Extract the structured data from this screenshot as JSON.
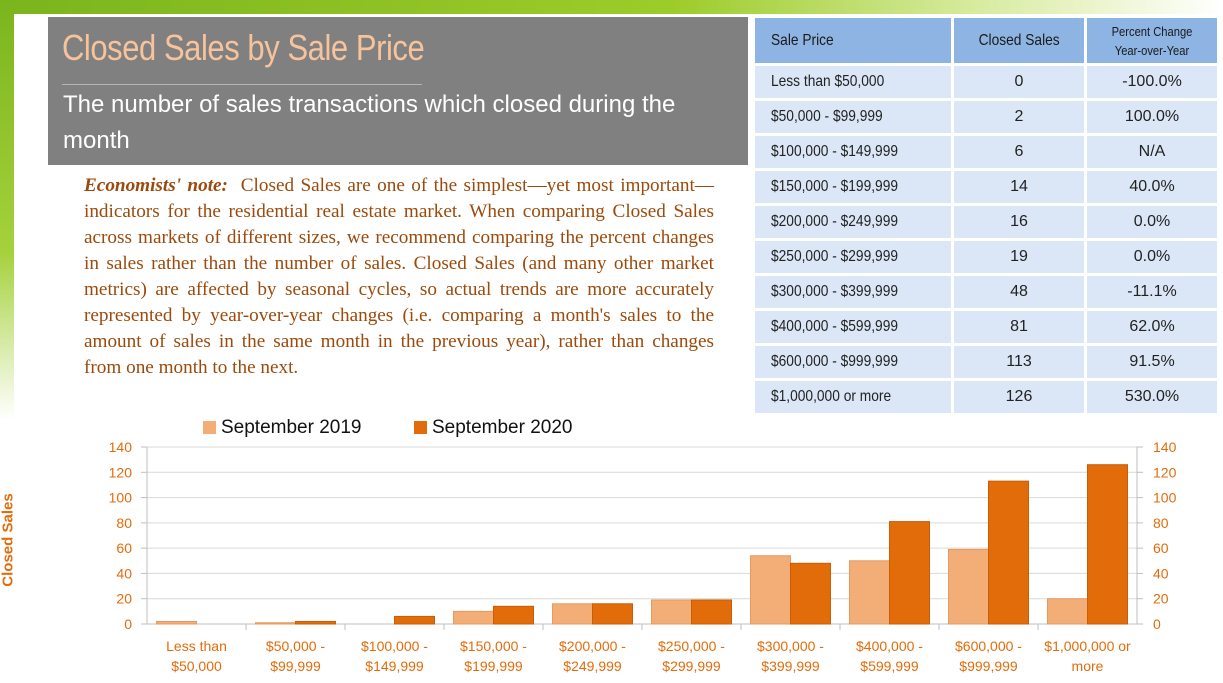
{
  "title": "Closed Sales by Sale Price",
  "subtitle": "The number of sales transactions which closed during the month",
  "note": {
    "label": "Economists' note:",
    "text": "Closed Sales are one of the simplest—yet most important—indicators for the residential real estate market. When comparing Closed Sales across markets of different sizes, we recommend comparing the percent changes in sales rather than the number of sales. Closed Sales (and many other market metrics) are affected by seasonal cycles, so actual trends are more accurately represented by year-over-year changes (i.e. comparing a month's sales to the amount of sales in the same month in the previous year), rather than changes from one month to the next."
  },
  "table": {
    "headers": [
      "Sale Price",
      "Closed Sales",
      "Percent Change",
      "Year-over-Year"
    ],
    "rows": [
      [
        "Less than $50,000",
        "0",
        "-100.0%"
      ],
      [
        "$50,000 - $99,999",
        "2",
        "100.0%"
      ],
      [
        "$100,000 - $149,999",
        "6",
        "N/A"
      ],
      [
        "$150,000 - $199,999",
        "14",
        "40.0%"
      ],
      [
        "$200,000 - $249,999",
        "16",
        "0.0%"
      ],
      [
        "$250,000 - $299,999",
        "19",
        "0.0%"
      ],
      [
        "$300,000 - $399,999",
        "48",
        "-11.1%"
      ],
      [
        "$400,000 - $599,999",
        "81",
        "62.0%"
      ],
      [
        "$600,000 - $999,999",
        "113",
        "91.5%"
      ],
      [
        "$1,000,000 or more",
        "126",
        "530.0%"
      ]
    ]
  },
  "colors": {
    "series_2019": "#f2ae76",
    "series_2020": "#e36c0a",
    "accent": "#e36c0a",
    "header_bg": "#8eb4e3",
    "cell_bg": "#dbe7f6"
  },
  "chart_data": {
    "type": "bar",
    "ylabel": "Closed Sales",
    "ylim": [
      0,
      140
    ],
    "yticks": [
      0,
      20,
      40,
      60,
      80,
      100,
      120,
      140
    ],
    "dual_y_axis": true,
    "grid": true,
    "legend_position": "top-left",
    "categories": [
      [
        "Less than",
        "$50,000"
      ],
      [
        "$50,000 -",
        "$99,999"
      ],
      [
        "$100,000 -",
        "$149,999"
      ],
      [
        "$150,000 -",
        "$199,999"
      ],
      [
        "$200,000 -",
        "$249,999"
      ],
      [
        "$250,000 -",
        "$299,999"
      ],
      [
        "$300,000 -",
        "$399,999"
      ],
      [
        "$400,000 -",
        "$599,999"
      ],
      [
        "$600,000 -",
        "$999,999"
      ],
      [
        "$1,000,000 or",
        "more"
      ]
    ],
    "series": [
      {
        "name": "September 2019",
        "values": [
          2,
          1,
          0,
          10,
          16,
          19,
          54,
          50,
          59,
          20
        ]
      },
      {
        "name": "September 2020",
        "values": [
          0,
          2,
          6,
          14,
          16,
          19,
          48,
          81,
          113,
          126
        ]
      }
    ]
  }
}
